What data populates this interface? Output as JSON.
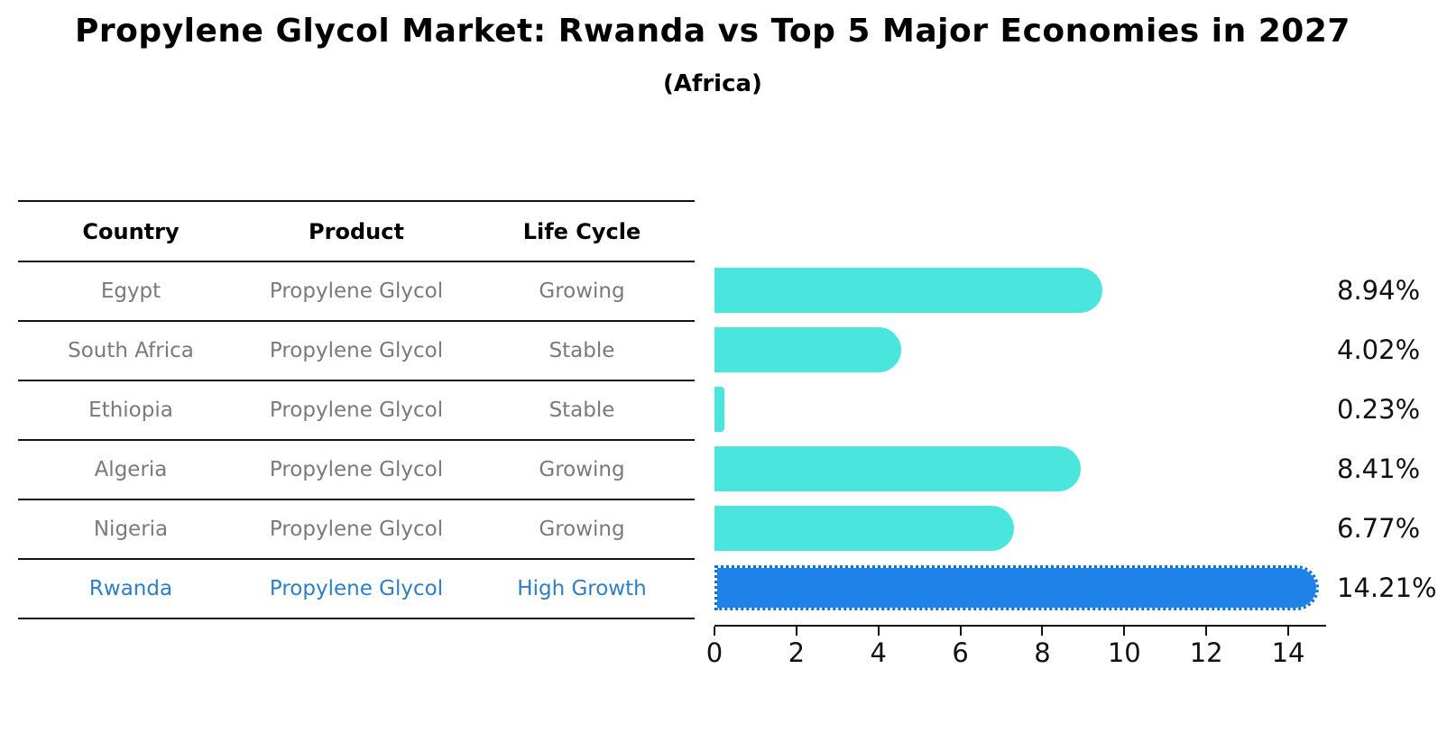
{
  "chart_data": {
    "type": "bar",
    "orientation": "horizontal",
    "title": "Propylene Glycol Market: Rwanda vs Top 5 Major Economies in 2027",
    "subtitle": "(Africa)",
    "categories": [
      "Egypt",
      "South Africa",
      "Ethiopia",
      "Algeria",
      "Nigeria",
      "Rwanda"
    ],
    "values": [
      8.94,
      4.02,
      0.23,
      8.41,
      6.77,
      14.21
    ],
    "value_labels": [
      "8.94%",
      "4.02%",
      "0.23%",
      "8.41%",
      "6.77%",
      "14.21%"
    ],
    "xlabel": "",
    "ylabel": "",
    "xlim": [
      0,
      14.88
    ],
    "x_ticks": [
      0,
      2,
      4,
      6,
      8,
      10,
      12,
      14
    ],
    "grid": false,
    "legend": false,
    "highlight_index": 5,
    "bar_color": "#4ae6dd",
    "highlight_bar_color": "#1e82e8",
    "highlight_border_color": "#1272d6",
    "highlight_text_color": "#2e7ec6",
    "value_label_color": "#111111"
  },
  "table": {
    "headers": [
      "Country",
      "Product",
      "Life Cycle"
    ],
    "rows": [
      {
        "country": "Egypt",
        "product": "Propylene Glycol",
        "life_cycle": "Growing",
        "highlight": false
      },
      {
        "country": "South Africa",
        "product": "Propylene Glycol",
        "life_cycle": "Stable",
        "highlight": false
      },
      {
        "country": "Ethiopia",
        "product": "Propylene Glycol",
        "life_cycle": "Stable",
        "highlight": false
      },
      {
        "country": "Algeria",
        "product": "Propylene Glycol",
        "life_cycle": "Growing",
        "highlight": false
      },
      {
        "country": "Nigeria",
        "product": "Propylene Glycol",
        "life_cycle": "Growing",
        "highlight": false
      },
      {
        "country": "Rwanda",
        "product": "Propylene Glycol",
        "life_cycle": "High Growth",
        "highlight": true
      }
    ]
  }
}
